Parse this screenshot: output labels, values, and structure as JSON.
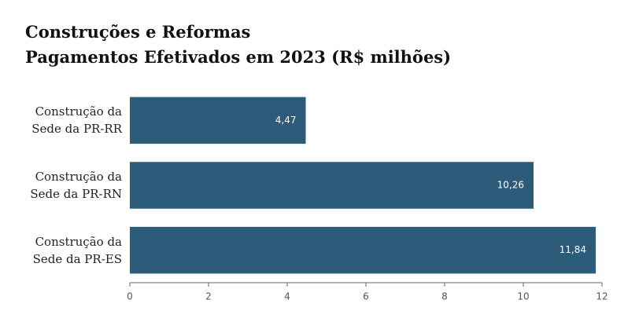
{
  "chart_data": {
    "type": "barh",
    "title": "Construções e Reformas",
    "subtitle": "Pagamentos Efetivados em 2023 (R$ milhões)",
    "categories": [
      "Construção da Sede da PR-RR",
      "Construção da Sede da PR-RN",
      "Construção da Sede da PR-ES"
    ],
    "values": [
      4.47,
      10.26,
      11.84
    ],
    "value_labels": [
      "4,47",
      "10,26",
      "11,84"
    ],
    "color": "#2d5b7a",
    "xlim": [
      0,
      12
    ],
    "xticks": [
      0,
      2,
      4,
      6,
      8,
      10,
      12
    ]
  }
}
